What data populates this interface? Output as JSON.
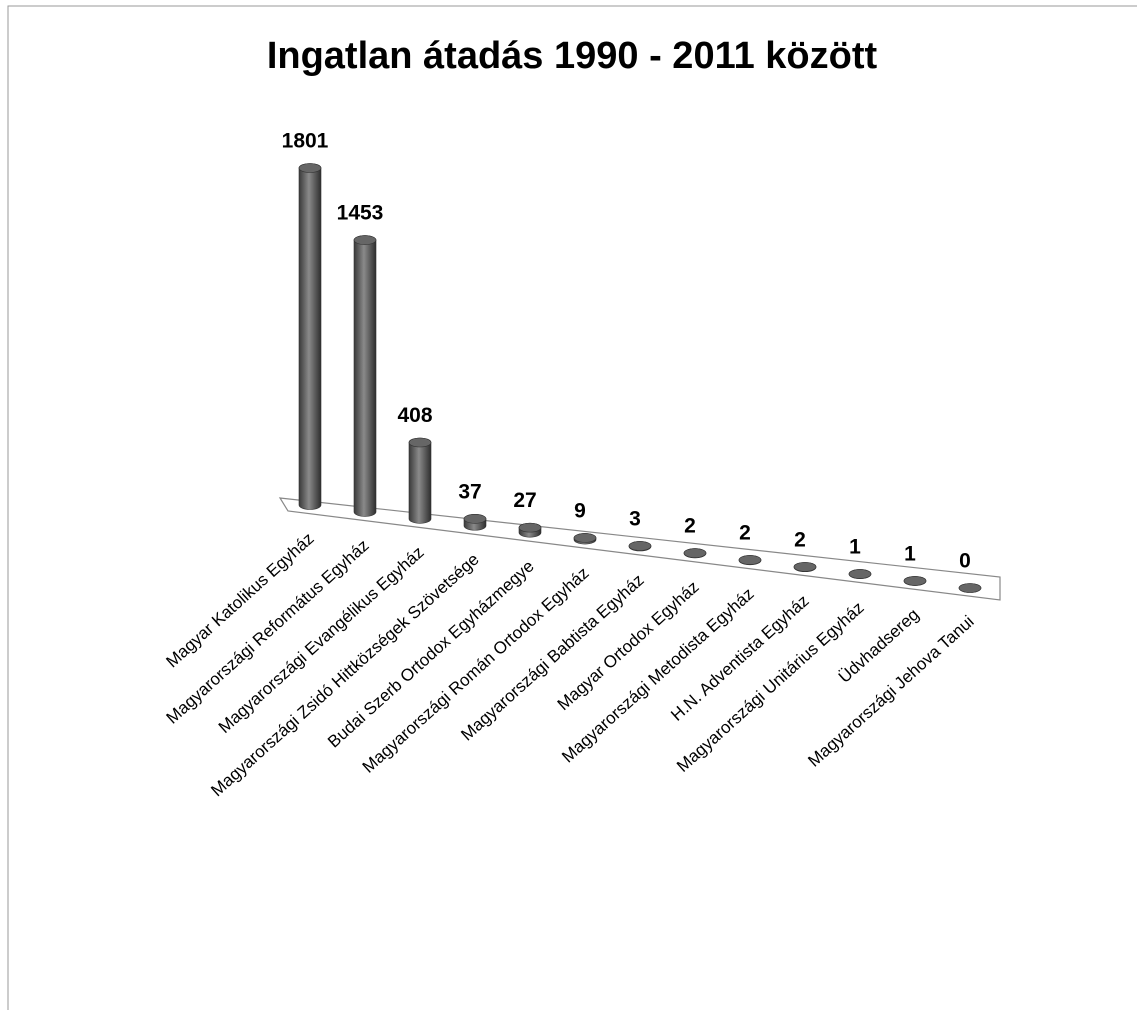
{
  "chart_data": {
    "type": "bar3d-cylinder",
    "title": "Ingatlan átadás 1990 - 2011 között",
    "categories": [
      "Magyar Katolikus Egyház",
      "Magyarországi Református Egyház",
      "Magyarországi Evangélikus Egyház",
      "Magyarországi Zsidó Hittközségek Szövetsége",
      "Budai Szerb Ortodox Egyházmegye",
      "Magyarországi Román Ortodox Egyház",
      "Magyarországi Babtista Egyház",
      "Magyar Ortodox Egyház",
      "Magyarországi Metodista Egyház",
      "H.N. Adventista Egyház",
      "Magyarországi Unitárius Egyház",
      "Üdvhadsereg",
      "Magyarországi Jehova Tanui"
    ],
    "values": [
      1801,
      1453,
      408,
      37,
      27,
      9,
      3,
      2,
      2,
      2,
      1,
      1,
      0
    ],
    "color": "#666666"
  }
}
